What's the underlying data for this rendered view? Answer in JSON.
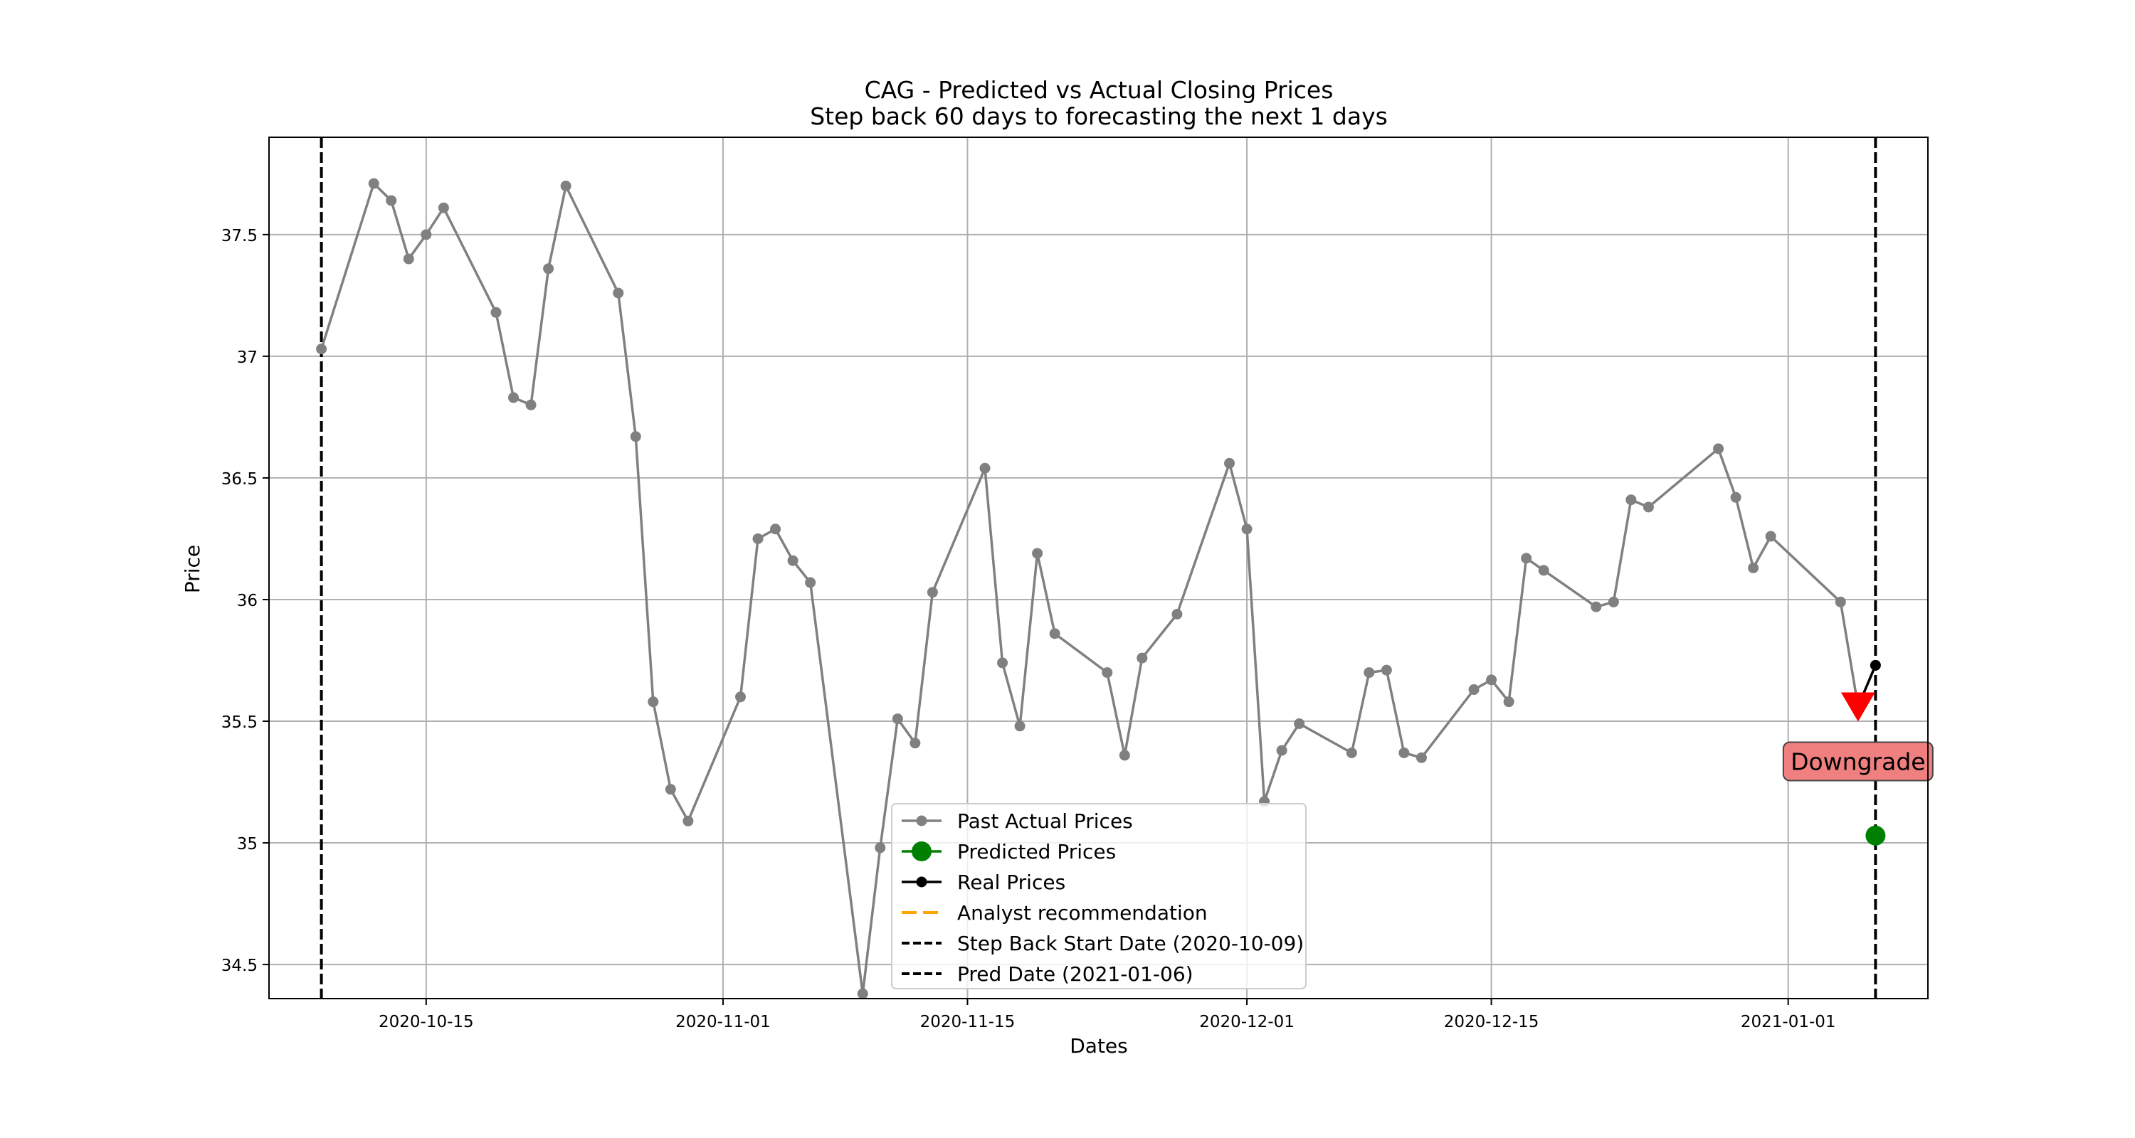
{
  "chart_data": {
    "type": "line",
    "title": "CAG - Predicted vs Actual Closing Prices",
    "subtitle": "Step back 60 days to forecasting the next 1 days",
    "xlabel": "Dates",
    "ylabel": "Price",
    "xlim": [
      "2020-10-06",
      "2021-01-09"
    ],
    "ylim": [
      34.36,
      37.9
    ],
    "x_ticks": [
      "2020-10-15",
      "2020-11-01",
      "2020-11-15",
      "2020-12-01",
      "2020-12-15",
      "2021-01-01"
    ],
    "y_ticks": [
      34.5,
      35.0,
      35.5,
      36.0,
      36.5,
      37.0,
      37.5
    ],
    "grid": true,
    "legend_position": "lower center",
    "series": [
      {
        "name": "Past Actual Prices",
        "color": "#808080",
        "marker": "circle",
        "points": [
          [
            "2020-10-09",
            37.03
          ],
          [
            "2020-10-12",
            37.71
          ],
          [
            "2020-10-13",
            37.64
          ],
          [
            "2020-10-14",
            37.4
          ],
          [
            "2020-10-15",
            37.5
          ],
          [
            "2020-10-16",
            37.61
          ],
          [
            "2020-10-19",
            37.18
          ],
          [
            "2020-10-20",
            36.83
          ],
          [
            "2020-10-21",
            36.8
          ],
          [
            "2020-10-22",
            37.36
          ],
          [
            "2020-10-23",
            37.7
          ],
          [
            "2020-10-26",
            37.26
          ],
          [
            "2020-10-27",
            36.67
          ],
          [
            "2020-10-28",
            35.58
          ],
          [
            "2020-10-29",
            35.22
          ],
          [
            "2020-10-30",
            35.09
          ],
          [
            "2020-11-02",
            35.6
          ],
          [
            "2020-11-03",
            36.25
          ],
          [
            "2020-11-04",
            36.29
          ],
          [
            "2020-11-05",
            36.16
          ],
          [
            "2020-11-06",
            36.07
          ],
          [
            "2020-11-09",
            34.38
          ],
          [
            "2020-11-10",
            34.98
          ],
          [
            "2020-11-11",
            35.51
          ],
          [
            "2020-11-12",
            35.41
          ],
          [
            "2020-11-13",
            36.03
          ],
          [
            "2020-11-16",
            36.54
          ],
          [
            "2020-11-17",
            35.74
          ],
          [
            "2020-11-18",
            35.48
          ],
          [
            "2020-11-19",
            36.19
          ],
          [
            "2020-11-20",
            35.86
          ],
          [
            "2020-11-23",
            35.7
          ],
          [
            "2020-11-24",
            35.36
          ],
          [
            "2020-11-25",
            35.76
          ],
          [
            "2020-11-27",
            35.94
          ],
          [
            "2020-11-30",
            36.56
          ],
          [
            "2020-12-01",
            36.29
          ],
          [
            "2020-12-02",
            35.17
          ],
          [
            "2020-12-03",
            35.38
          ],
          [
            "2020-12-04",
            35.49
          ],
          [
            "2020-12-07",
            35.37
          ],
          [
            "2020-12-08",
            35.7
          ],
          [
            "2020-12-09",
            35.71
          ],
          [
            "2020-12-10",
            35.37
          ],
          [
            "2020-12-11",
            35.35
          ],
          [
            "2020-12-14",
            35.63
          ],
          [
            "2020-12-15",
            35.67
          ],
          [
            "2020-12-16",
            35.58
          ],
          [
            "2020-12-17",
            36.17
          ],
          [
            "2020-12-18",
            36.12
          ],
          [
            "2020-12-21",
            35.97
          ],
          [
            "2020-12-22",
            35.99
          ],
          [
            "2020-12-23",
            36.41
          ],
          [
            "2020-12-24",
            36.38
          ],
          [
            "2020-12-28",
            36.62
          ],
          [
            "2020-12-29",
            36.42
          ],
          [
            "2020-12-30",
            36.13
          ],
          [
            "2020-12-31",
            36.26
          ],
          [
            "2021-01-04",
            35.99
          ],
          [
            "2021-01-05",
            35.56
          ]
        ]
      },
      {
        "name": "Predicted Prices",
        "color": "#008000",
        "marker": "large-circle",
        "points": [
          [
            "2021-01-06",
            35.03
          ]
        ]
      },
      {
        "name": "Real Prices",
        "color": "#000000",
        "marker": "circle",
        "points": [
          [
            "2021-01-05",
            35.56
          ],
          [
            "2021-01-06",
            35.73
          ]
        ]
      },
      {
        "name": "Analyst recommendation",
        "color": "#FFA500",
        "marker": "dashed",
        "points": []
      }
    ],
    "vertical_lines": [
      {
        "name": "Step Back Start Date (2020-10-09)",
        "date": "2020-10-09",
        "color": "#000000"
      },
      {
        "name": "Pred Date (2021-01-06)",
        "date": "2021-01-06",
        "color": "#000000"
      }
    ],
    "annotations": [
      {
        "text": "Downgrade",
        "date": "2021-01-05",
        "marker": "triangle-down",
        "marker_color": "#FF0000",
        "marker_value": 35.56,
        "box_color": "#F08080"
      }
    ]
  }
}
